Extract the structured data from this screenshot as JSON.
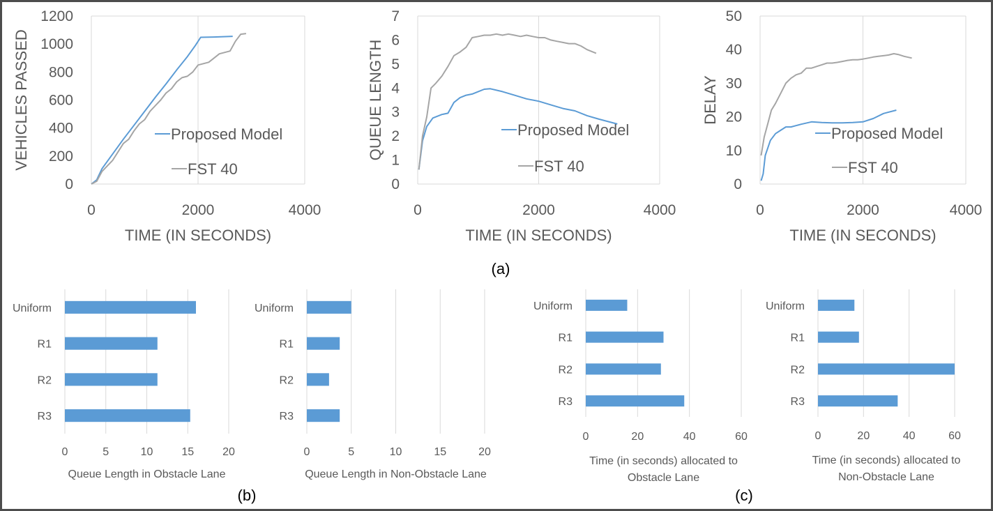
{
  "colors": {
    "proposed": "#5b9bd5",
    "fst": "#a5a5a5",
    "bar": "#5b9bd5",
    "grid": "#d9d9d9",
    "text": "#595959",
    "border": "#4d4d4d"
  },
  "captions": {
    "a": "(a)",
    "b": "(b)",
    "c": "(c)"
  },
  "chart_data": [
    {
      "id": "vehicles",
      "type": "line",
      "ylabel": "VEHICLES PASSED",
      "xlabel": "TIME (IN SECONDS)",
      "xlim": [
        0,
        4000
      ],
      "ylim": [
        0,
        1200
      ],
      "xticks": [
        0,
        2000,
        4000
      ],
      "yticks": [
        0,
        200,
        400,
        600,
        800,
        1000,
        1200
      ],
      "grid": "vertical",
      "legend_position": "right",
      "series": [
        {
          "name": "Proposed Model",
          "x": [
            0,
            100,
            200,
            400,
            600,
            800,
            1000,
            1200,
            1400,
            1600,
            1800,
            1950,
            2050,
            2300,
            2650
          ],
          "y": [
            0,
            30,
            110,
            215,
            320,
            420,
            520,
            620,
            715,
            815,
            910,
            990,
            1048,
            1050,
            1055
          ]
        },
        {
          "name": "FST 40",
          "x": [
            0,
            100,
            200,
            300,
            400,
            500,
            600,
            700,
            800,
            900,
            1000,
            1100,
            1200,
            1300,
            1400,
            1500,
            1600,
            1700,
            1800,
            1900,
            2000,
            2100,
            2200,
            2300,
            2400,
            2500,
            2600,
            2700,
            2800,
            2900
          ],
          "y": [
            0,
            20,
            90,
            130,
            170,
            230,
            290,
            320,
            380,
            430,
            460,
            520,
            560,
            600,
            650,
            680,
            730,
            760,
            770,
            800,
            850,
            860,
            870,
            900,
            930,
            940,
            950,
            1020,
            1070,
            1075
          ]
        }
      ]
    },
    {
      "id": "queue",
      "type": "line",
      "ylabel": "QUEUE LENGTH",
      "xlabel": "TIME (IN SECONDS)",
      "xlim": [
        0,
        4000
      ],
      "ylim": [
        0,
        7
      ],
      "xticks": [
        0,
        2000,
        4000
      ],
      "yticks": [
        0,
        1,
        2,
        3,
        4,
        5,
        6,
        7
      ],
      "grid": "vertical",
      "legend_position": "right",
      "series": [
        {
          "name": "Proposed Model",
          "x": [
            20,
            80,
            150,
            250,
            400,
            500,
            600,
            700,
            800,
            900,
            1000,
            1100,
            1200,
            1400,
            1600,
            1800,
            2000,
            2200,
            2400,
            2600,
            2800,
            3000,
            3300
          ],
          "y": [
            0.6,
            1.8,
            2.4,
            2.75,
            2.9,
            2.95,
            3.4,
            3.6,
            3.7,
            3.75,
            3.85,
            3.95,
            3.97,
            3.85,
            3.7,
            3.55,
            3.45,
            3.3,
            3.15,
            3.05,
            2.85,
            2.7,
            2.5
          ]
        },
        {
          "name": "FST 40",
          "x": [
            20,
            80,
            150,
            220,
            300,
            400,
            500,
            600,
            700,
            800,
            900,
            1000,
            1100,
            1200,
            1300,
            1400,
            1500,
            1600,
            1700,
            1800,
            1900,
            2000,
            2100,
            2200,
            2300,
            2400,
            2500,
            2600,
            2700,
            2800,
            2950
          ],
          "y": [
            0.6,
            2.0,
            2.8,
            4.0,
            4.2,
            4.5,
            4.9,
            5.35,
            5.5,
            5.7,
            6.1,
            6.15,
            6.2,
            6.2,
            6.25,
            6.2,
            6.25,
            6.2,
            6.15,
            6.2,
            6.15,
            6.1,
            6.1,
            6.0,
            5.95,
            5.9,
            5.85,
            5.85,
            5.75,
            5.6,
            5.45
          ]
        }
      ]
    },
    {
      "id": "delay",
      "type": "line",
      "ylabel": "DELAY",
      "xlabel": "TIME (IN SECONDS)",
      "xlim": [
        0,
        4000
      ],
      "ylim": [
        0,
        50
      ],
      "xticks": [
        0,
        2000,
        4000
      ],
      "yticks": [
        0,
        10,
        20,
        30,
        40,
        50
      ],
      "grid": "vertical",
      "legend_position": "right",
      "series": [
        {
          "name": "Proposed Model",
          "x": [
            20,
            60,
            100,
            200,
            300,
            400,
            500,
            600,
            800,
            1000,
            1200,
            1400,
            1600,
            1800,
            2000,
            2200,
            2400,
            2650
          ],
          "y": [
            1,
            3,
            8.5,
            13,
            15,
            16,
            17,
            17,
            17.8,
            18.5,
            18.3,
            18.2,
            18.2,
            18.3,
            18.5,
            19.5,
            21,
            22
          ]
        },
        {
          "name": "FST 40",
          "x": [
            20,
            80,
            150,
            220,
            300,
            400,
            500,
            600,
            700,
            800,
            900,
            1000,
            1100,
            1200,
            1300,
            1400,
            1500,
            1600,
            1700,
            1800,
            1900,
            2000,
            2100,
            2200,
            2300,
            2400,
            2500,
            2600,
            2700,
            2800,
            2950
          ],
          "y": [
            8.5,
            14,
            18,
            22,
            24,
            27,
            30,
            31.5,
            32.5,
            33,
            34.5,
            34.5,
            35,
            35.5,
            36,
            36,
            36.2,
            36.5,
            36.8,
            37,
            37,
            37.2,
            37.5,
            37.8,
            38,
            38.2,
            38.4,
            38.8,
            38.5,
            38,
            37.5
          ]
        }
      ]
    },
    {
      "id": "queue_obstacle",
      "type": "bar",
      "orientation": "horizontal",
      "xlabel": "Queue Length in Obstacle Lane",
      "categories": [
        "Uniform",
        "R1",
        "R2",
        "R3"
      ],
      "values": [
        16,
        11.3,
        11.3,
        15.3
      ],
      "xlim": [
        0,
        20
      ],
      "xticks": [
        0,
        5,
        10,
        15,
        20
      ],
      "grid": "vertical"
    },
    {
      "id": "queue_nonobstacle",
      "type": "bar",
      "orientation": "horizontal",
      "xlabel": "Queue Length in Non-Obstacle Lane",
      "categories": [
        "Uniform",
        "R1",
        "R2",
        "R3"
      ],
      "values": [
        5,
        3.7,
        2.5,
        3.7
      ],
      "xlim": [
        0,
        20
      ],
      "xticks": [
        0,
        5,
        10,
        15,
        20
      ],
      "grid": "vertical"
    },
    {
      "id": "time_obstacle",
      "type": "bar",
      "orientation": "horizontal",
      "xlabel": [
        "Time (in seconds) allocated to",
        "Obstacle Lane"
      ],
      "categories": [
        "Uniform",
        "R1",
        "R2",
        "R3"
      ],
      "values": [
        16,
        30,
        29,
        38
      ],
      "xlim": [
        0,
        60
      ],
      "xticks": [
        0,
        20,
        40,
        60
      ],
      "grid": "vertical"
    },
    {
      "id": "time_nonobstacle",
      "type": "bar",
      "orientation": "horizontal",
      "xlabel": [
        "Time (in seconds) allocated to",
        "Non-Obstacle Lane"
      ],
      "categories": [
        "Uniform",
        "R1",
        "R2",
        "R3"
      ],
      "values": [
        16,
        18,
        60,
        35
      ],
      "xlim": [
        0,
        60
      ],
      "xticks": [
        0,
        20,
        40,
        60
      ],
      "grid": "vertical"
    }
  ]
}
